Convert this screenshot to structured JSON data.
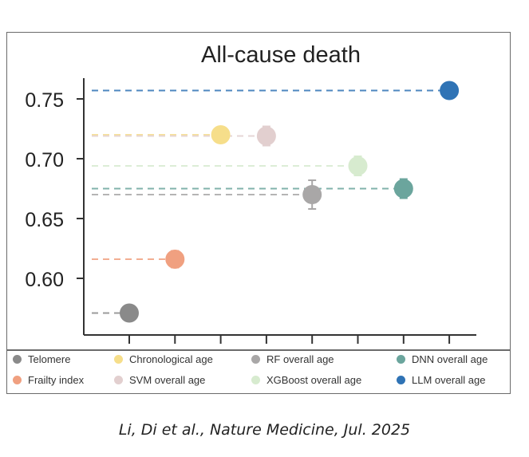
{
  "chart_data": {
    "type": "scatter",
    "title": "All-cause death",
    "xlabel": "",
    "ylabel": "",
    "ylim": [
      0.55,
      0.775
    ],
    "yticks": [
      "0.60",
      "0.65",
      "0.70",
      "0.75"
    ],
    "ytick_values": [
      0.6,
      0.65,
      0.7,
      0.75
    ],
    "grid": false,
    "legend_position": "bottom",
    "series": [
      {
        "name": "Telomere",
        "color": "#8a8a8a",
        "value": 0.571,
        "error": 0.006
      },
      {
        "name": "Frailty index",
        "color": "#f0a080",
        "value": 0.616,
        "error": 0.007
      },
      {
        "name": "Chronological age",
        "color": "#f6de8a",
        "value": 0.72,
        "error": 0.006
      },
      {
        "name": "SVM overall age",
        "color": "#e2cfcf",
        "value": 0.719,
        "error": 0.008
      },
      {
        "name": "RF overall age",
        "color": "#a9a7a7",
        "value": 0.67,
        "error": 0.012
      },
      {
        "name": "XGBoost overall age",
        "color": "#d7ebcf",
        "value": 0.694,
        "error": 0.008
      },
      {
        "name": "DNN overall age",
        "color": "#6ba59d",
        "value": 0.675,
        "error": 0.008
      },
      {
        "name": "LLM overall age",
        "color": "#2f73b5",
        "value": 0.757,
        "error": 0.004
      }
    ]
  },
  "legend": {
    "items": [
      {
        "label": "Telomere",
        "color": "#8a8a8a"
      },
      {
        "label": "Chronological age",
        "color": "#f6de8a"
      },
      {
        "label": "RF overall age",
        "color": "#a9a7a7"
      },
      {
        "label": "DNN overall age",
        "color": "#6ba59d"
      },
      {
        "label": "Frailty index",
        "color": "#f0a080"
      },
      {
        "label": "SVM overall age",
        "color": "#e2cfcf"
      },
      {
        "label": "XGBoost overall age",
        "color": "#d7ebcf"
      },
      {
        "label": "LLM overall age",
        "color": "#2f73b5"
      }
    ]
  },
  "citation": "Li, Di et al., Nature Medicine, Jul. 2025"
}
